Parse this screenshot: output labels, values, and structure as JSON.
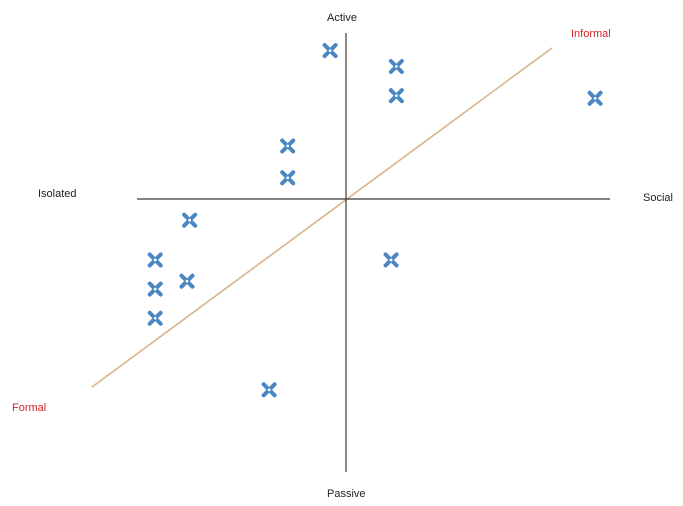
{
  "labels": {
    "active": "Active",
    "passive": "Passive",
    "isolated": "Isolated",
    "social": "Social",
    "informal": "Informal",
    "formal": "Formal"
  },
  "colors": {
    "marker": "#4a86c2",
    "diagonal": "#d9b48a",
    "axis": "#3a3a3a",
    "diagonal_labels": "#d2232a"
  },
  "marker_icon": "x-mark-icon",
  "chart_data": {
    "type": "scatter",
    "xlabel_left": "Isolated",
    "xlabel_right": "Social",
    "ylabel_top": "Active",
    "ylabel_bottom": "Passive",
    "diagonal_from": "Formal",
    "diagonal_to": "Informal",
    "xlim": [
      -10,
      10
    ],
    "ylim": [
      -10,
      10
    ],
    "points": [
      {
        "x": -0.6,
        "y": 5.6
      },
      {
        "x": 1.9,
        "y": 5.0
      },
      {
        "x": 1.9,
        "y": 3.9
      },
      {
        "x": 9.4,
        "y": 3.8
      },
      {
        "x": -2.2,
        "y": 2.0
      },
      {
        "x": -2.2,
        "y": 0.8
      },
      {
        "x": -5.9,
        "y": -0.8
      },
      {
        "x": -7.2,
        "y": -2.3
      },
      {
        "x": -6.0,
        "y": -3.1
      },
      {
        "x": -7.2,
        "y": -3.4
      },
      {
        "x": -7.2,
        "y": -4.5
      },
      {
        "x": 1.7,
        "y": -2.3
      },
      {
        "x": -2.9,
        "y": -7.2
      }
    ]
  }
}
